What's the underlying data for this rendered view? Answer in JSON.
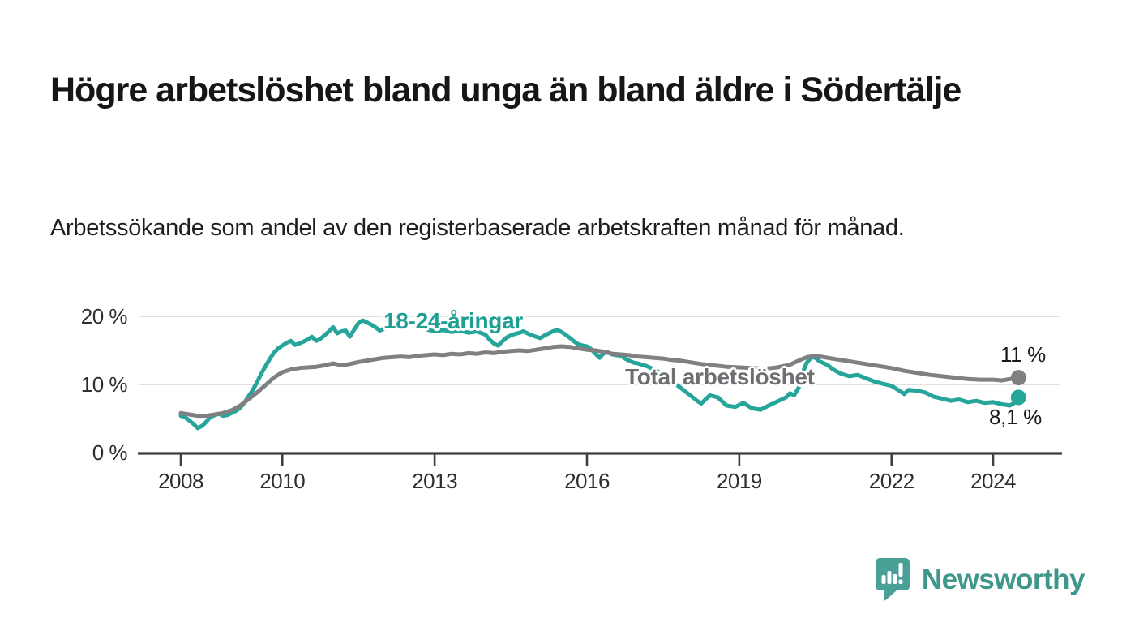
{
  "chart_data": {
    "type": "line",
    "title": "Högre arbetslöshet bland unga än bland äldre i Södertälje",
    "subtitle": "Arbetssökande som andel av den registerbaserade arbetskraften månad för månad.",
    "unit": "%",
    "grid": "horizontal",
    "legend_position": "inline-labels",
    "x_axis": {
      "range": [
        2007.2,
        2025.3
      ],
      "ticks": [
        {
          "value": 2008,
          "label": "2008"
        },
        {
          "value": 2010,
          "label": "2010"
        },
        {
          "value": 2013,
          "label": "2013"
        },
        {
          "value": 2016,
          "label": "2016"
        },
        {
          "value": 2019,
          "label": "2019"
        },
        {
          "value": 2022,
          "label": "2022"
        },
        {
          "value": 2024,
          "label": "2024"
        }
      ]
    },
    "y_axis": {
      "range": [
        0,
        22.4
      ],
      "ticks": [
        {
          "value": 20,
          "label": "20 %"
        },
        {
          "value": 10,
          "label": "10 %"
        },
        {
          "value": 0,
          "label": "0 %"
        }
      ]
    },
    "colors": {
      "grid": "#d6d6d6",
      "axis": "#3f3f3f",
      "value_label_text": "#191919"
    },
    "series": [
      {
        "name": "18-24-åringar",
        "color": "#26a69a",
        "label_color": "#1d9f92",
        "end_value_label": "8,1 %",
        "points": [
          [
            2008,
            5.4
          ],
          [
            2008.08,
            5.2
          ],
          [
            2008.17,
            4.7
          ],
          [
            2008.25,
            4.2
          ],
          [
            2008.33,
            3.6
          ],
          [
            2008.42,
            3.9
          ],
          [
            2008.5,
            4.5
          ],
          [
            2008.58,
            5.2
          ],
          [
            2008.67,
            5.5
          ],
          [
            2008.75,
            5.7
          ],
          [
            2008.83,
            5.4
          ],
          [
            2008.92,
            5.5
          ],
          [
            2009,
            5.8
          ],
          [
            2009.08,
            6.1
          ],
          [
            2009.17,
            6.6
          ],
          [
            2009.25,
            7.3
          ],
          [
            2009.33,
            8.2
          ],
          [
            2009.42,
            9.2
          ],
          [
            2009.5,
            10.3
          ],
          [
            2009.58,
            11.5
          ],
          [
            2009.67,
            12.7
          ],
          [
            2009.75,
            13.7
          ],
          [
            2009.83,
            14.6
          ],
          [
            2009.92,
            15.3
          ],
          [
            2010,
            15.7
          ],
          [
            2010.08,
            16.1
          ],
          [
            2010.17,
            16.4
          ],
          [
            2010.25,
            15.8
          ],
          [
            2010.33,
            16
          ],
          [
            2010.42,
            16.3
          ],
          [
            2010.5,
            16.6
          ],
          [
            2010.58,
            17
          ],
          [
            2010.67,
            16.4
          ],
          [
            2010.75,
            16.7
          ],
          [
            2010.83,
            17.2
          ],
          [
            2010.92,
            17.8
          ],
          [
            2011,
            18.4
          ],
          [
            2011.08,
            17.5
          ],
          [
            2011.17,
            17.8
          ],
          [
            2011.25,
            17.9
          ],
          [
            2011.33,
            17
          ],
          [
            2011.42,
            18.1
          ],
          [
            2011.5,
            19
          ],
          [
            2011.58,
            19.4
          ],
          [
            2011.67,
            19.1
          ],
          [
            2011.75,
            18.8
          ],
          [
            2011.83,
            18.4
          ],
          [
            2011.92,
            17.9
          ],
          [
            2012,
            18.2
          ],
          [
            2012.17,
            18.5
          ],
          [
            2012.33,
            18.8
          ],
          [
            2012.5,
            19.2
          ],
          [
            2012.58,
            18.9
          ],
          [
            2012.67,
            18.6
          ],
          [
            2012.83,
            18.1
          ],
          [
            2013,
            17.8
          ],
          [
            2013.17,
            18
          ],
          [
            2013.33,
            17.7
          ],
          [
            2013.5,
            17.9
          ],
          [
            2013.67,
            17.6
          ],
          [
            2013.83,
            17.8
          ],
          [
            2014,
            17.3
          ],
          [
            2014.08,
            16.6
          ],
          [
            2014.17,
            16
          ],
          [
            2014.25,
            15.7
          ],
          [
            2014.33,
            16.3
          ],
          [
            2014.42,
            16.9
          ],
          [
            2014.5,
            17.2
          ],
          [
            2014.58,
            17.4
          ],
          [
            2014.67,
            17.6
          ],
          [
            2014.75,
            17.8
          ],
          [
            2014.83,
            17.5
          ],
          [
            2014.92,
            17.2
          ],
          [
            2015,
            17
          ],
          [
            2015.08,
            16.8
          ],
          [
            2015.17,
            17.2
          ],
          [
            2015.25,
            17.5
          ],
          [
            2015.33,
            17.8
          ],
          [
            2015.42,
            18
          ],
          [
            2015.5,
            17.7
          ],
          [
            2015.58,
            17.3
          ],
          [
            2015.67,
            16.8
          ],
          [
            2015.75,
            16.3
          ],
          [
            2015.83,
            15.9
          ],
          [
            2015.92,
            15.7
          ],
          [
            2016,
            15.6
          ],
          [
            2016.08,
            15.2
          ],
          [
            2016.17,
            14.5
          ],
          [
            2016.25,
            13.9
          ],
          [
            2016.33,
            14.6
          ],
          [
            2016.42,
            14.7
          ],
          [
            2016.5,
            14.4
          ],
          [
            2016.58,
            14.3
          ],
          [
            2016.67,
            14.2
          ],
          [
            2016.75,
            13.8
          ],
          [
            2016.83,
            13.5
          ],
          [
            2016.92,
            13.2
          ],
          [
            2017,
            13.1
          ],
          [
            2017.17,
            12.7
          ],
          [
            2017.33,
            12.2
          ],
          [
            2017.5,
            11.4
          ],
          [
            2017.67,
            10.5
          ],
          [
            2017.83,
            9.6
          ],
          [
            2018,
            8.6
          ],
          [
            2018.17,
            7.6
          ],
          [
            2018.25,
            7.2
          ],
          [
            2018.42,
            8.4
          ],
          [
            2018.58,
            8.1
          ],
          [
            2018.75,
            6.9
          ],
          [
            2018.92,
            6.7
          ],
          [
            2019.08,
            7.3
          ],
          [
            2019.25,
            6.5
          ],
          [
            2019.42,
            6.3
          ],
          [
            2019.58,
            6.9
          ],
          [
            2019.75,
            7.5
          ],
          [
            2019.92,
            8.1
          ],
          [
            2020,
            8.7
          ],
          [
            2020.08,
            8.4
          ],
          [
            2020.17,
            9.5
          ],
          [
            2020.25,
            11.8
          ],
          [
            2020.33,
            13.2
          ],
          [
            2020.42,
            14
          ],
          [
            2020.5,
            13.9
          ],
          [
            2020.58,
            13.4
          ],
          [
            2020.67,
            13.1
          ],
          [
            2020.75,
            12.8
          ],
          [
            2020.83,
            12.3
          ],
          [
            2020.92,
            11.9
          ],
          [
            2021,
            11.6
          ],
          [
            2021.17,
            11.2
          ],
          [
            2021.33,
            11.4
          ],
          [
            2021.5,
            10.9
          ],
          [
            2021.67,
            10.4
          ],
          [
            2021.83,
            10.1
          ],
          [
            2022,
            9.8
          ],
          [
            2022.17,
            9
          ],
          [
            2022.25,
            8.6
          ],
          [
            2022.33,
            9.2
          ],
          [
            2022.5,
            9.1
          ],
          [
            2022.67,
            8.8
          ],
          [
            2022.83,
            8.2
          ],
          [
            2023,
            7.9
          ],
          [
            2023.17,
            7.6
          ],
          [
            2023.33,
            7.8
          ],
          [
            2023.5,
            7.4
          ],
          [
            2023.67,
            7.6
          ],
          [
            2023.83,
            7.3
          ],
          [
            2024,
            7.4
          ],
          [
            2024.17,
            7.1
          ],
          [
            2024.33,
            6.9
          ],
          [
            2024.42,
            7.3
          ],
          [
            2024.5,
            8.1
          ]
        ]
      },
      {
        "name": "Total arbetslöshet",
        "color": "#808083",
        "label_color": "#6e6f72",
        "end_value_label": "11 %",
        "points": [
          [
            2008,
            5.8
          ],
          [
            2008.17,
            5.6
          ],
          [
            2008.33,
            5.4
          ],
          [
            2008.5,
            5.4
          ],
          [
            2008.67,
            5.6
          ],
          [
            2008.83,
            5.8
          ],
          [
            2009,
            6.2
          ],
          [
            2009.17,
            6.9
          ],
          [
            2009.33,
            7.8
          ],
          [
            2009.5,
            8.8
          ],
          [
            2009.67,
            9.9
          ],
          [
            2009.83,
            11
          ],
          [
            2010,
            11.8
          ],
          [
            2010.17,
            12.2
          ],
          [
            2010.33,
            12.4
          ],
          [
            2010.5,
            12.5
          ],
          [
            2010.67,
            12.6
          ],
          [
            2010.83,
            12.8
          ],
          [
            2011,
            13.1
          ],
          [
            2011.17,
            12.8
          ],
          [
            2011.33,
            13
          ],
          [
            2011.5,
            13.3
          ],
          [
            2011.67,
            13.5
          ],
          [
            2011.83,
            13.7
          ],
          [
            2012,
            13.9
          ],
          [
            2012.17,
            14
          ],
          [
            2012.33,
            14.1
          ],
          [
            2012.5,
            14
          ],
          [
            2012.67,
            14.2
          ],
          [
            2012.83,
            14.3
          ],
          [
            2013,
            14.4
          ],
          [
            2013.17,
            14.3
          ],
          [
            2013.33,
            14.5
          ],
          [
            2013.5,
            14.4
          ],
          [
            2013.67,
            14.6
          ],
          [
            2013.83,
            14.5
          ],
          [
            2014,
            14.7
          ],
          [
            2014.17,
            14.6
          ],
          [
            2014.33,
            14.8
          ],
          [
            2014.5,
            14.9
          ],
          [
            2014.67,
            15
          ],
          [
            2014.83,
            14.9
          ],
          [
            2015,
            15.1
          ],
          [
            2015.17,
            15.3
          ],
          [
            2015.33,
            15.5
          ],
          [
            2015.5,
            15.6
          ],
          [
            2015.67,
            15.5
          ],
          [
            2015.83,
            15.3
          ],
          [
            2016,
            15.1
          ],
          [
            2016.17,
            15
          ],
          [
            2016.33,
            14.8
          ],
          [
            2016.5,
            14.5
          ],
          [
            2016.67,
            14.4
          ],
          [
            2016.83,
            14.3
          ],
          [
            2017,
            14.1
          ],
          [
            2017.17,
            14
          ],
          [
            2017.33,
            13.9
          ],
          [
            2017.5,
            13.8
          ],
          [
            2017.67,
            13.6
          ],
          [
            2017.83,
            13.5
          ],
          [
            2018,
            13.3
          ],
          [
            2018.25,
            13
          ],
          [
            2018.5,
            12.8
          ],
          [
            2018.75,
            12.6
          ],
          [
            2019,
            12.5
          ],
          [
            2019.25,
            12.4
          ],
          [
            2019.5,
            12.3
          ],
          [
            2019.75,
            12.5
          ],
          [
            2020,
            12.9
          ],
          [
            2020.17,
            13.5
          ],
          [
            2020.33,
            14
          ],
          [
            2020.5,
            14.2
          ],
          [
            2020.67,
            14
          ],
          [
            2020.83,
            13.8
          ],
          [
            2021,
            13.6
          ],
          [
            2021.25,
            13.3
          ],
          [
            2021.5,
            13
          ],
          [
            2021.75,
            12.7
          ],
          [
            2022,
            12.4
          ],
          [
            2022.25,
            12
          ],
          [
            2022.5,
            11.7
          ],
          [
            2022.75,
            11.4
          ],
          [
            2023,
            11.2
          ],
          [
            2023.25,
            11
          ],
          [
            2023.5,
            10.8
          ],
          [
            2023.75,
            10.7
          ],
          [
            2024,
            10.7
          ],
          [
            2024.17,
            10.6
          ],
          [
            2024.33,
            10.8
          ],
          [
            2024.5,
            11
          ]
        ]
      }
    ]
  },
  "branding": {
    "name": "Newsworthy",
    "logo_color": "#4aa096",
    "text_color": "#3f968b",
    "logo_icon": "speech-bubble-bar-chart-icon"
  }
}
